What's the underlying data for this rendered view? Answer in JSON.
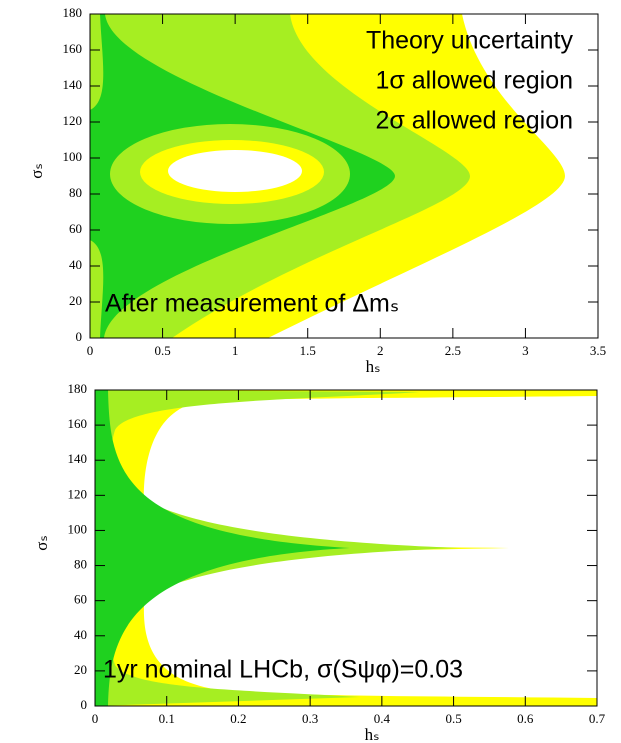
{
  "chart_data": [
    {
      "type": "contour",
      "xlabel": "hₛ",
      "ylabel": "σₛ",
      "xlim": [
        0,
        3.5
      ],
      "xticks": [
        0,
        0.5,
        1,
        1.5,
        2,
        2.5,
        3,
        3.5
      ],
      "ylim": [
        0,
        180
      ],
      "yticks": [
        0,
        20,
        40,
        60,
        80,
        100,
        120,
        140,
        160,
        180
      ],
      "series": [
        {
          "name": "Theory uncertainty",
          "color": "#1fd11f"
        },
        {
          "name": "1σ allowed region",
          "color": "#a6ee22"
        },
        {
          "name": "2σ allowed region",
          "color": "#ffff00"
        }
      ],
      "legend": "upper right",
      "annotation": "After measurement of Δmₛ"
    },
    {
      "type": "contour",
      "xlabel": "hₛ",
      "ylabel": "σₛ",
      "xlim": [
        0,
        0.7
      ],
      "xticks": [
        0,
        0.1,
        0.2,
        0.3,
        0.4,
        0.5,
        0.6,
        0.7
      ],
      "ylim": [
        0,
        180
      ],
      "yticks": [
        0,
        20,
        40,
        60,
        80,
        100,
        120,
        140,
        160,
        180
      ],
      "annotation": "1yr nominal LHCb, σ(Sψφ)=0.03"
    }
  ]
}
